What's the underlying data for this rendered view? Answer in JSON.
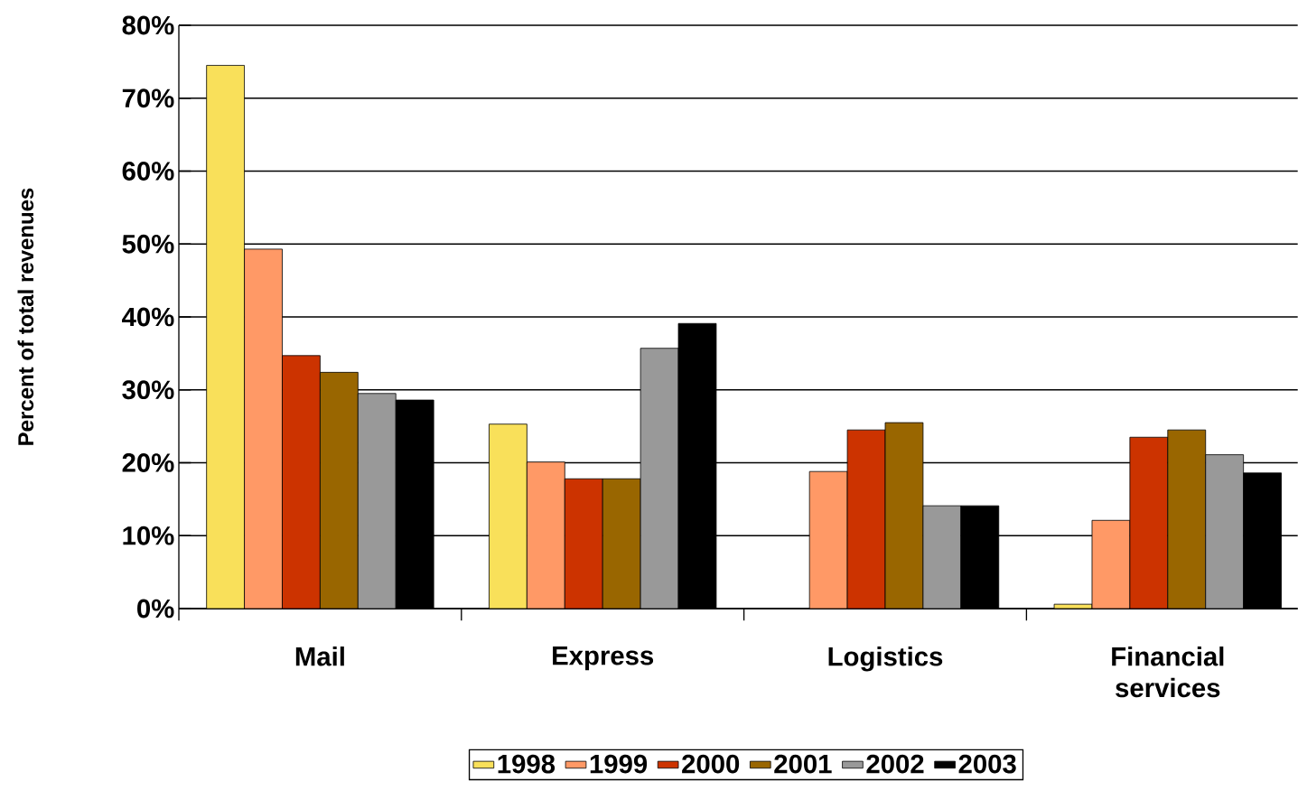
{
  "chart_data": {
    "type": "bar",
    "ylabel": "Percent of total revenues",
    "categories": [
      "Mail",
      "Express",
      "Logistics",
      "Financial services"
    ],
    "series": [
      {
        "name": "1998",
        "color": "#f9e05a",
        "values": [
          74.5,
          25.3,
          null,
          0.6
        ]
      },
      {
        "name": "1999",
        "color": "#ff9966",
        "values": [
          49.3,
          20.1,
          18.8,
          12.1
        ]
      },
      {
        "name": "2000",
        "color": "#cc3300",
        "values": [
          34.7,
          17.8,
          24.5,
          23.5
        ]
      },
      {
        "name": "2001",
        "color": "#996600",
        "values": [
          32.4,
          17.8,
          25.5,
          24.5
        ]
      },
      {
        "name": "2002",
        "color": "#999999",
        "values": [
          29.5,
          35.7,
          14.1,
          21.1
        ]
      },
      {
        "name": "2003",
        "color": "#000000",
        "values": [
          28.6,
          39.1,
          14.1,
          18.6
        ]
      }
    ],
    "ylim": [
      0,
      80
    ],
    "yticks": [
      {
        "value": 0,
        "label": "0%"
      },
      {
        "value": 10,
        "label": "10%"
      },
      {
        "value": 20,
        "label": "20%"
      },
      {
        "value": 30,
        "label": "30%"
      },
      {
        "value": 40,
        "label": "40%"
      },
      {
        "value": 50,
        "label": "50%"
      },
      {
        "value": 60,
        "label": "60%"
      },
      {
        "value": 70,
        "label": "70%"
      },
      {
        "value": 80,
        "label": "80%"
      }
    ],
    "grid": "y",
    "legend": "bottom"
  }
}
